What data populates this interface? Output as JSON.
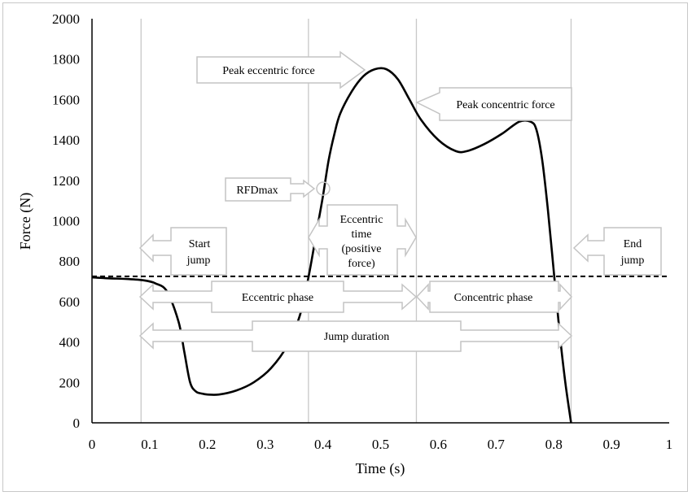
{
  "chart_data": {
    "type": "line",
    "title": "",
    "xlabel": "Time (s)",
    "ylabel": "Force (N)",
    "xlim": [
      0,
      1
    ],
    "ylim": [
      0,
      2000
    ],
    "x_ticks": [
      "0",
      "0.1",
      "0.2",
      "0.3",
      "0.4",
      "0.5",
      "0.6",
      "0.7",
      "0.8",
      "0.9",
      "1"
    ],
    "y_ticks": [
      "0",
      "200",
      "400",
      "600",
      "800",
      "1000",
      "1200",
      "1400",
      "1600",
      "1800",
      "2000"
    ],
    "grid": false,
    "phase_lines_x": [
      0.085,
      0.375,
      0.562,
      0.83
    ],
    "body_weight_n": 725,
    "series": [
      {
        "style": "solid",
        "x": [
          0,
          0.03,
          0.06,
          0.09,
          0.11,
          0.13,
          0.15,
          0.16,
          0.17,
          0.18,
          0.19,
          0.2,
          0.22,
          0.25,
          0.28,
          0.31,
          0.34,
          0.36,
          0.375,
          0.39,
          0.4,
          0.41,
          0.42,
          0.43,
          0.45,
          0.47,
          0.49,
          0.51,
          0.53,
          0.55,
          0.57,
          0.6,
          0.63,
          0.65,
          0.68,
          0.71,
          0.74,
          0.76,
          0.77,
          0.78,
          0.79,
          0.8,
          0.81,
          0.82,
          0.83
        ],
        "y": [
          720,
          715,
          712,
          705,
          690,
          650,
          500,
          350,
          200,
          155,
          145,
          140,
          140,
          160,
          200,
          270,
          390,
          530,
          720,
          960,
          1120,
          1300,
          1430,
          1530,
          1640,
          1715,
          1750,
          1750,
          1700,
          1600,
          1500,
          1400,
          1345,
          1345,
          1380,
          1430,
          1490,
          1490,
          1450,
          1300,
          1050,
          750,
          450,
          200,
          0
        ]
      },
      {
        "style": "dashed",
        "x": [
          0,
          1
        ],
        "y": [
          725,
          725
        ]
      }
    ],
    "annotations": [
      {
        "id": "peak-eccentric-force",
        "text": "Peak eccentric force"
      },
      {
        "id": "peak-concentric-force",
        "text": "Peak concentric force"
      },
      {
        "id": "rfdmax",
        "text": "RFDmax"
      },
      {
        "id": "start-jump",
        "text": "Start jump"
      },
      {
        "id": "eccentric-time",
        "text": "Eccentric time (positive force)"
      },
      {
        "id": "end-jump",
        "text": "End jump"
      },
      {
        "id": "eccentric-phase",
        "text": "Eccentric phase"
      },
      {
        "id": "concentric-phase",
        "text": "Concentric phase"
      },
      {
        "id": "jump-duration",
        "text": "Jump duration"
      }
    ]
  }
}
